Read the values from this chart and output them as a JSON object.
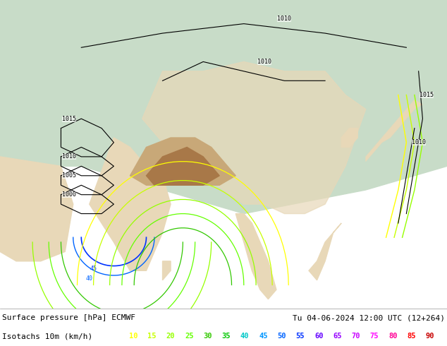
{
  "title_left": "Surface pressure [hPa] ECMWF",
  "title_right": "Tu 04-06-2024 12:00 UTC (12+264)",
  "legend_label": "Isotachs 10m (km/h)",
  "isotach_values": [
    10,
    15,
    20,
    25,
    30,
    35,
    40,
    45,
    50,
    55,
    60,
    65,
    70,
    75,
    80,
    85,
    90
  ],
  "isotach_colors": [
    "#ffff00",
    "#c8ff00",
    "#96ff00",
    "#64ff00",
    "#32c800",
    "#00c800",
    "#00c8c8",
    "#0096ff",
    "#0064ff",
    "#0032ff",
    "#6400ff",
    "#9600ff",
    "#c800ff",
    "#ff00ff",
    "#ff0096",
    "#ff0000",
    "#c80000"
  ],
  "bg_color": "#ffffff",
  "fig_width": 6.34,
  "fig_height": 4.9,
  "dpi": 100,
  "title_fontsize": 8.0,
  "legend_fontsize": 8.0,
  "info_bar_height": 0.108,
  "map_colors": {
    "ocean": "#aad3df",
    "land_green": "#c8dcc8",
    "land_beige": "#e8d8b8",
    "mountain": "#c8a878",
    "deep_mountain": "#a87848"
  }
}
